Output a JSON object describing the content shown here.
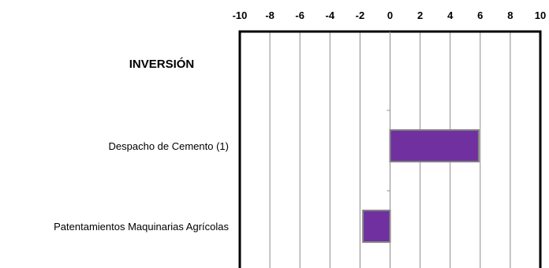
{
  "chart_data": {
    "type": "bar",
    "orientation": "horizontal",
    "title": "INVERSIÓN",
    "categories": [
      "Despacho de Cemento (1)",
      "Patentamientos Maquinarias Agrícolas"
    ],
    "values": [
      5.9,
      -1.8
    ],
    "xlim": [
      -10,
      10
    ],
    "x_ticks": [
      -10,
      -8,
      -6,
      -4,
      -2,
      0,
      2,
      4,
      6,
      8,
      10
    ],
    "x_axis_position": "top",
    "grid": true,
    "bar_color": "#7030a0",
    "bar_edge_color": "#808080",
    "legend": "none"
  }
}
